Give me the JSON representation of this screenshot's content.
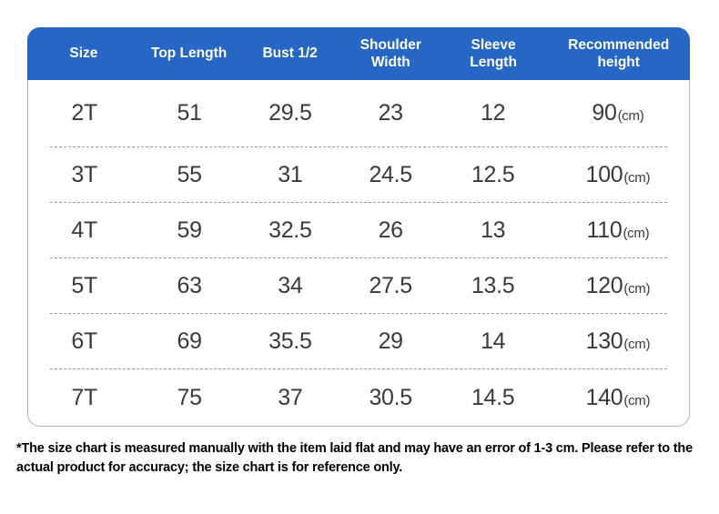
{
  "colors": {
    "header_bg": "#2667c5",
    "header_text": "#ffffff",
    "body_text": "#3a3a3a",
    "table_border": "#b3b3b3",
    "row_divider": "#9c9c9c",
    "footnote_text": "#000000"
  },
  "chart_data": {
    "type": "table",
    "title": "",
    "columns": [
      "Size",
      "Top Length",
      "Bust 1/2",
      "Shoulder\nWidth",
      "Sleeve\nLength",
      "Recommended height"
    ],
    "unit_label": "(cm)",
    "rows": [
      {
        "size": "2T",
        "top_length": "51",
        "bust_half": "29.5",
        "shoulder_width": "23",
        "sleeve_length": "12",
        "recommended_height": "90",
        "unit": "(cm)"
      },
      {
        "size": "3T",
        "top_length": "55",
        "bust_half": "31",
        "shoulder_width": "24.5",
        "sleeve_length": "12.5",
        "recommended_height": "100",
        "unit": "(cm)"
      },
      {
        "size": "4T",
        "top_length": "59",
        "bust_half": "32.5",
        "shoulder_width": "26",
        "sleeve_length": "13",
        "recommended_height": "110",
        "unit": "(cm)"
      },
      {
        "size": "5T",
        "top_length": "63",
        "bust_half": "34",
        "shoulder_width": "27.5",
        "sleeve_length": "13.5",
        "recommended_height": "120",
        "unit": "(cm)"
      },
      {
        "size": "6T",
        "top_length": "69",
        "bust_half": "35.5",
        "shoulder_width": "29",
        "sleeve_length": "14",
        "recommended_height": "130",
        "unit": "(cm)"
      },
      {
        "size": "7T",
        "top_length": "75",
        "bust_half": "37",
        "shoulder_width": "30.5",
        "sleeve_length": "14.5",
        "recommended_height": "140",
        "unit": "(cm)"
      }
    ]
  },
  "footer": {
    "note": "*The size chart is measured manually with the item laid flat and may have an error of 1-3 cm. Please refer to the actual product for accuracy; the size chart is for reference only."
  }
}
